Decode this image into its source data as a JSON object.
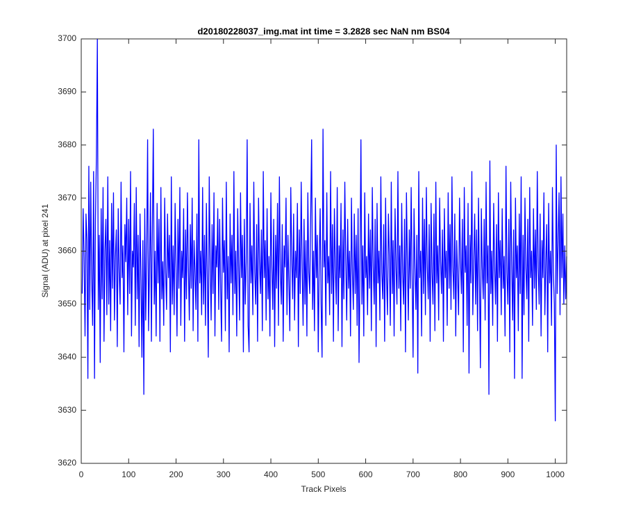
{
  "chart_data": {
    "type": "line",
    "title": "d20180228037_img.mat int time = 3.2828 sec  NaN nm BS04",
    "x_label": "Track Pixels",
    "y_label": "Signal (ADU) at pixel 241",
    "xlim": [
      0,
      1024
    ],
    "ylim": [
      3620,
      3700
    ],
    "xticks": [
      0,
      100,
      200,
      300,
      400,
      500,
      600,
      700,
      800,
      900,
      1000
    ],
    "yticks": [
      3620,
      3630,
      3640,
      3650,
      3660,
      3670,
      3680,
      3690,
      3700
    ],
    "grid": false,
    "series": [
      {
        "color": "#0000ff",
        "x": [
          2,
          4,
          6,
          8,
          10,
          12,
          14,
          16,
          18,
          20,
          22,
          24,
          26,
          28,
          30,
          32,
          34,
          36,
          38,
          40,
          42,
          44,
          46,
          48,
          50,
          52,
          54,
          56,
          58,
          60,
          62,
          64,
          66,
          68,
          70,
          72,
          74,
          76,
          78,
          80,
          82,
          84,
          86,
          88,
          90,
          92,
          94,
          96,
          98,
          100,
          102,
          104,
          106,
          108,
          110,
          112,
          114,
          116,
          118,
          120,
          122,
          124,
          126,
          128,
          130,
          132,
          134,
          136,
          138,
          140,
          142,
          144,
          146,
          148,
          150,
          152,
          154,
          156,
          158,
          160,
          162,
          164,
          166,
          168,
          170,
          172,
          174,
          176,
          178,
          180,
          182,
          184,
          186,
          188,
          190,
          192,
          194,
          196,
          198,
          200,
          202,
          204,
          206,
          208,
          210,
          212,
          214,
          216,
          218,
          220,
          222,
          224,
          226,
          228,
          230,
          232,
          234,
          236,
          238,
          240,
          242,
          244,
          246,
          248,
          250,
          252,
          254,
          256,
          258,
          260,
          262,
          264,
          266,
          268,
          270,
          272,
          274,
          276,
          278,
          280,
          282,
          284,
          286,
          288,
          290,
          292,
          294,
          296,
          298,
          300,
          302,
          304,
          306,
          308,
          310,
          312,
          314,
          316,
          318,
          320,
          322,
          324,
          326,
          328,
          330,
          332,
          334,
          336,
          338,
          340,
          342,
          344,
          346,
          348,
          350,
          352,
          354,
          356,
          358,
          360,
          362,
          364,
          366,
          368,
          370,
          372,
          374,
          376,
          378,
          380,
          382,
          384,
          386,
          388,
          390,
          392,
          394,
          396,
          398,
          400,
          402,
          404,
          406,
          408,
          410,
          412,
          414,
          416,
          418,
          420,
          422,
          424,
          426,
          428,
          430,
          432,
          434,
          436,
          438,
          440,
          442,
          444,
          446,
          448,
          450,
          452,
          454,
          456,
          458,
          460,
          462,
          464,
          466,
          468,
          470,
          472,
          474,
          476,
          478,
          480,
          482,
          484,
          486,
          488,
          490,
          492,
          494,
          496,
          498,
          500,
          502,
          504,
          506,
          508,
          510,
          512,
          514,
          516,
          518,
          520,
          522,
          524,
          526,
          528,
          530,
          532,
          534,
          536,
          538,
          540,
          542,
          544,
          546,
          548,
          550,
          552,
          554,
          556,
          558,
          560,
          562,
          564,
          566,
          568,
          570,
          572,
          574,
          576,
          578,
          580,
          582,
          584,
          586,
          588,
          590,
          592,
          594,
          596,
          598,
          600,
          602,
          604,
          606,
          608,
          610,
          612,
          614,
          616,
          618,
          620,
          622,
          624,
          626,
          628,
          630,
          632,
          634,
          636,
          638,
          640,
          642,
          644,
          646,
          648,
          650,
          652,
          654,
          656,
          658,
          660,
          662,
          664,
          666,
          668,
          670,
          672,
          674,
          676,
          678,
          680,
          682,
          684,
          686,
          688,
          690,
          692,
          694,
          696,
          698,
          700,
          702,
          704,
          706,
          708,
          710,
          712,
          714,
          716,
          718,
          720,
          722,
          724,
          726,
          728,
          730,
          732,
          734,
          736,
          738,
          740,
          742,
          744,
          746,
          748,
          750,
          752,
          754,
          756,
          758,
          760,
          762,
          764,
          766,
          768,
          770,
          772,
          774,
          776,
          778,
          780,
          782,
          784,
          786,
          788,
          790,
          792,
          794,
          796,
          798,
          800,
          802,
          804,
          806,
          808,
          810,
          812,
          814,
          816,
          818,
          820,
          822,
          824,
          826,
          828,
          830,
          832,
          834,
          836,
          838,
          840,
          842,
          844,
          846,
          848,
          850,
          852,
          854,
          856,
          858,
          860,
          862,
          864,
          866,
          868,
          870,
          872,
          874,
          876,
          878,
          880,
          882,
          884,
          886,
          888,
          890,
          892,
          894,
          896,
          898,
          900,
          902,
          904,
          906,
          908,
          910,
          912,
          914,
          916,
          918,
          920,
          922,
          924,
          926,
          928,
          930,
          932,
          934,
          936,
          938,
          940,
          942,
          944,
          946,
          948,
          950,
          952,
          954,
          956,
          958,
          960,
          962,
          964,
          966,
          968,
          970,
          972,
          974,
          976,
          978,
          980,
          982,
          984,
          986,
          988,
          990,
          992,
          994,
          996,
          998,
          1000,
          1002,
          1004,
          1006,
          1008,
          1010,
          1012,
          1014,
          1016,
          1018,
          1020,
          1022,
          1024
        ],
        "values": [
          3652,
          3668,
          3659,
          3644,
          3667,
          3662,
          3636,
          3676,
          3649,
          3673,
          3655,
          3646,
          3675,
          3636,
          3666,
          3678,
          3700,
          3649,
          3663,
          3639,
          3668,
          3651,
          3672,
          3643,
          3660,
          3666,
          3648,
          3674,
          3650,
          3662,
          3645,
          3669,
          3653,
          3671,
          3647,
          3659,
          3664,
          3642,
          3668,
          3656,
          3650,
          3673,
          3655,
          3661,
          3641,
          3665,
          3658,
          3670,
          3648,
          3666,
          3652,
          3675,
          3644,
          3660,
          3657,
          3669,
          3646,
          3672,
          3651,
          3663,
          3642,
          3667,
          3655,
          3640,
          3662,
          3633,
          3668,
          3647,
          3659,
          3681,
          3645,
          3657,
          3671,
          3643,
          3664,
          3683,
          3650,
          3660,
          3644,
          3669,
          3654,
          3666,
          3643,
          3672,
          3651,
          3658,
          3646,
          3670,
          3656,
          3649,
          3667,
          3655,
          3663,
          3641,
          3674,
          3650,
          3661,
          3648,
          3669,
          3657,
          3644,
          3666,
          3653,
          3672,
          3646,
          3660,
          3655,
          3668,
          3643,
          3664,
          3651,
          3671,
          3657,
          3647,
          3665,
          3653,
          3670,
          3645,
          3662,
          3656,
          3649,
          3667,
          3643,
          3681,
          3654,
          3660,
          3648,
          3672,
          3650,
          3663,
          3646,
          3669,
          3655,
          3640,
          3674,
          3658,
          3647,
          3665,
          3652,
          3671,
          3644,
          3661,
          3657,
          3668,
          3649,
          3666,
          3653,
          3643,
          3670,
          3656,
          3662,
          3645,
          3673,
          3651,
          3659,
          3641,
          3667,
          3654,
          3663,
          3648,
          3675,
          3652,
          3660,
          3644,
          3668,
          3657,
          3647,
          3671,
          3655,
          3663,
          3641,
          3666,
          3650,
          3658,
          3681,
          3646,
          3641,
          3669,
          3654,
          3661,
          3648,
          3673,
          3656,
          3650,
          3665,
          3643,
          3670,
          3658,
          3652,
          3664,
          3645,
          3675,
          3655,
          3662,
          3647,
          3668,
          3651,
          3659,
          3644,
          3671,
          3657,
          3649,
          3666,
          3642,
          3663,
          3653,
          3669,
          3646,
          3674,
          3656,
          3650,
          3665,
          3643,
          3661,
          3657,
          3670,
          3648,
          3663,
          3654,
          3645,
          3672,
          3659,
          3651,
          3667,
          3647,
          3660,
          3655,
          3669,
          3642,
          3664,
          3652,
          3673,
          3657,
          3646,
          3666,
          3650,
          3662,
          3644,
          3671,
          3656,
          3652,
          3667,
          3681,
          3649,
          3660,
          3645,
          3670,
          3655,
          3663,
          3641,
          3658,
          3668,
          3650,
          3640,
          3683,
          3657,
          3662,
          3646,
          3671,
          3654,
          3659,
          3648,
          3675,
          3652,
          3665,
          3643,
          3668,
          3657,
          3650,
          3672,
          3645,
          3661,
          3655,
          3669,
          3642,
          3664,
          3651,
          3673,
          3658,
          3647,
          3666,
          3653,
          3660,
          3644,
          3670,
          3656,
          3649,
          3667,
          3652,
          3663,
          3646,
          3668,
          3639,
          3657,
          3681,
          3650,
          3661,
          3644,
          3671,
          3655,
          3659,
          3648,
          3667,
          3653,
          3664,
          3645,
          3672,
          3657,
          3650,
          3666,
          3642,
          3669,
          3654,
          3660,
          3647,
          3674,
          3656,
          3651,
          3665,
          3643,
          3670,
          3655,
          3648,
          3667,
          3659,
          3646,
          3673,
          3652,
          3662,
          3644,
          3668,
          3657,
          3650,
          3675,
          3653,
          3661,
          3645,
          3669,
          3656,
          3650,
          3666,
          3641,
          3671,
          3658,
          3647,
          3664,
          3653,
          3672,
          3655,
          3640,
          3668,
          3657,
          3649,
          3663,
          3637,
          3675,
          3655,
          3660,
          3644,
          3670,
          3652,
          3666,
          3648,
          3672,
          3657,
          3651,
          3665,
          3643,
          3669,
          3656,
          3650,
          3667,
          3645,
          3673,
          3654,
          3661,
          3647,
          3670,
          3658,
          3652,
          3664,
          3643,
          3668,
          3655,
          3660,
          3646,
          3671,
          3653,
          3665,
          3649,
          3674,
          3657,
          3651,
          3667,
          3644,
          3662,
          3655,
          3648,
          3670,
          3658,
          3652,
          3666,
          3641,
          3672,
          3656,
          3661,
          3646,
          3669,
          3637,
          3663,
          3654,
          3675,
          3648,
          3658,
          3667,
          3650,
          3664,
          3645,
          3670,
          3655,
          3638,
          3668,
          3657,
          3651,
          3666,
          3647,
          3673,
          3654,
          3661,
          3633,
          3677,
          3652,
          3660,
          3646,
          3669,
          3657,
          3650,
          3665,
          3643,
          3671,
          3655,
          3662,
          3648,
          3668,
          3653,
          3659,
          3644,
          3676,
          3656,
          3650,
          3666,
          3641,
          3673,
          3658,
          3647,
          3664,
          3636,
          3670,
          3655,
          3661,
          3645,
          3667,
          3652,
          3674,
          3636,
          3663,
          3648,
          3670,
          3657,
          3651,
          3666,
          3643,
          3672,
          3655,
          3660,
          3646,
          3668,
          3653,
          3664,
          3649,
          3675,
          3657,
          3650,
          3667,
          3644,
          3662,
          3655,
          3671,
          3648,
          3658,
          3665,
          3641,
          3669,
          3654,
          3660,
          3646,
          3672,
          3656,
          3650,
          3628,
          3680,
          3652,
          3662,
          3671,
          3648,
          3674,
          3655,
          3667,
          3650,
          3661,
          3651,
          3659
        ]
      }
    ]
  }
}
